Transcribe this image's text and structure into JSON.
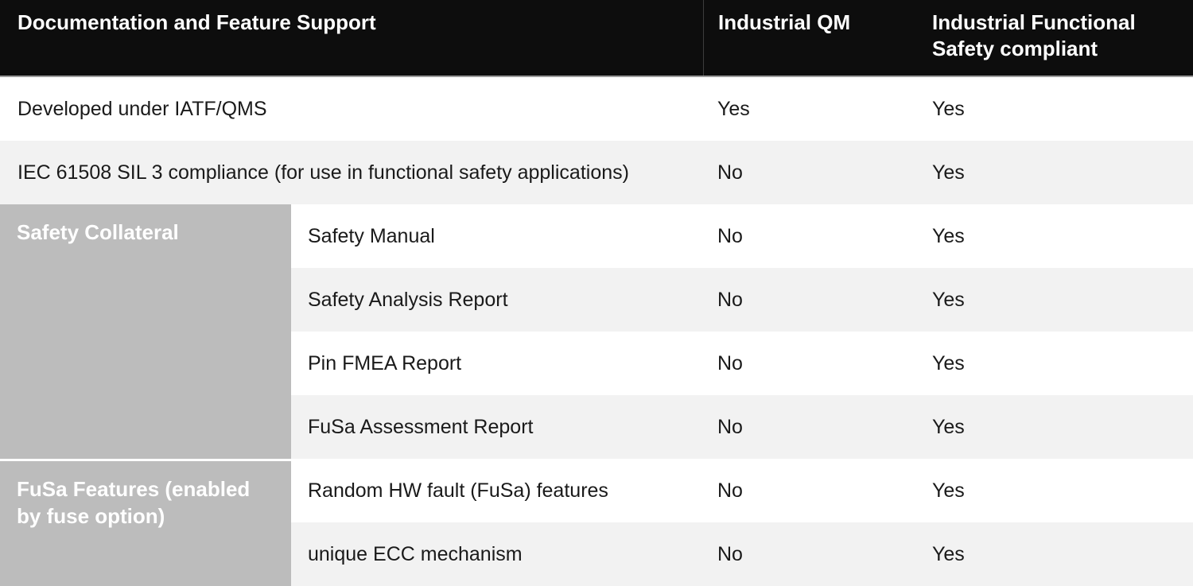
{
  "header": {
    "columns": [
      "Documentation and Feature Support",
      "Industrial QM",
      "Industrial Functional Safety compliant"
    ]
  },
  "rows": [
    {
      "label": "Developed under IATF/QMS",
      "industrial_qm": "Yes",
      "industrial_fusa": "Yes"
    },
    {
      "label": "IEC 61508 SIL 3 compliance (for use in functional safety applications)",
      "industrial_qm": "No",
      "industrial_fusa": "Yes"
    },
    {
      "label": "Safety Manual",
      "industrial_qm": "No",
      "industrial_fusa": "Yes"
    },
    {
      "label": "Safety Analysis Report",
      "industrial_qm": "No",
      "industrial_fusa": "Yes"
    },
    {
      "label": "Pin FMEA Report",
      "industrial_qm": "No",
      "industrial_fusa": "Yes"
    },
    {
      "label": "FuSa Assessment Report",
      "industrial_qm": "No",
      "industrial_fusa": "Yes"
    },
    {
      "label": "Random HW fault (FuSa) features",
      "industrial_qm": "No",
      "industrial_fusa": "Yes"
    },
    {
      "label": "unique ECC mechanism",
      "industrial_qm": "No",
      "industrial_fusa": "Yes"
    }
  ],
  "groups": [
    {
      "label": "Safety Collateral"
    },
    {
      "label": "FuSa Features (enabled by fuse option)"
    }
  ],
  "colors": {
    "header_bg": "#0d0d0d",
    "header_text": "#ffffff",
    "group_bg": "#bcbcbc",
    "group_text": "#ffffff",
    "row_bg": "#ffffff",
    "row_alt_bg": "#f2f2f2",
    "body_text": "#1a1a1a"
  },
  "chart_data": {
    "type": "table",
    "title": "Documentation and Feature Support",
    "columns": [
      "Documentation and Feature Support",
      "Industrial QM",
      "Industrial Functional Safety compliant"
    ],
    "rows": [
      [
        "Developed under IATF/QMS",
        "Yes",
        "Yes"
      ],
      [
        "IEC 61508 SIL 3 compliance (for use in functional safety applications)",
        "No",
        "Yes"
      ],
      [
        "Safety Collateral — Safety Manual",
        "No",
        "Yes"
      ],
      [
        "Safety Collateral — Safety Analysis Report",
        "No",
        "Yes"
      ],
      [
        "Safety Collateral — Pin FMEA Report",
        "No",
        "Yes"
      ],
      [
        "Safety Collateral — FuSa Assessment Report",
        "No",
        "Yes"
      ],
      [
        "FuSa Features (enabled by fuse option) — Random HW fault (FuSa) features",
        "No",
        "Yes"
      ],
      [
        "FuSa Features (enabled by fuse option) — unique ECC mechanism",
        "No",
        "Yes"
      ]
    ]
  }
}
